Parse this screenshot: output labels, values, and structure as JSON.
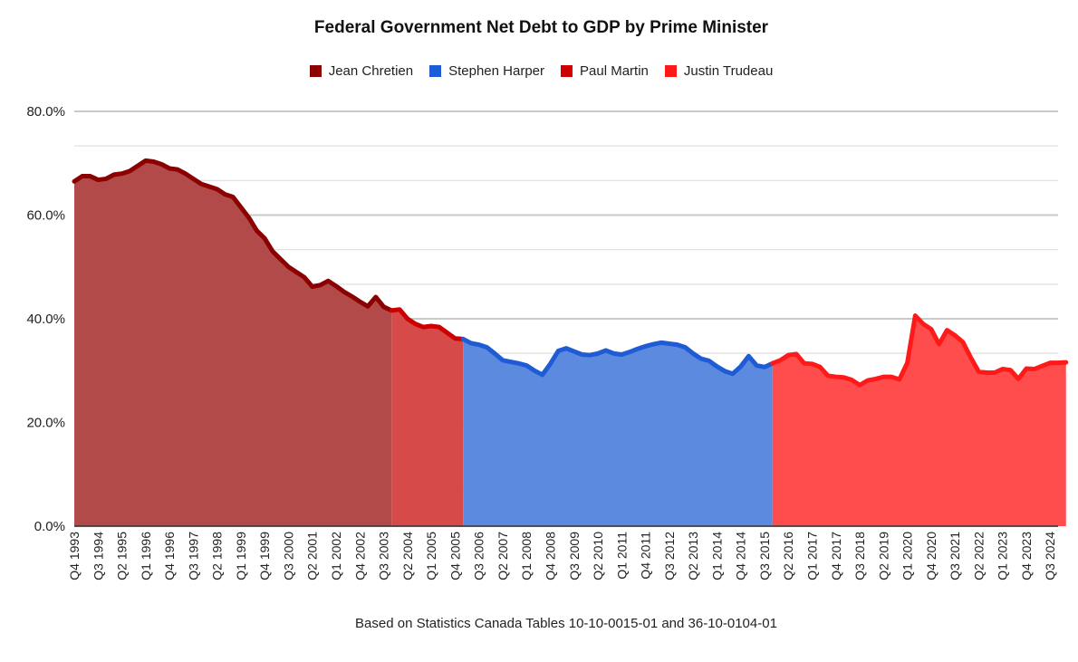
{
  "chart_data": {
    "type": "area",
    "title": "Federal Government Net Debt to GDP by Prime Minister",
    "caption": "Based on Statistics Canada Tables 10-10-0015-01 and 36-10-0104-01",
    "ylim": [
      0,
      80
    ],
    "yticks": [
      "0.0%",
      "20.0%",
      "40.0%",
      "60.0%",
      "80.0%"
    ],
    "ytick_values": [
      0,
      20,
      40,
      60,
      80
    ],
    "grid": true,
    "legend_position": "top",
    "x_start": "Q4 1993",
    "x_end": "Q4 2024",
    "x_tick_labels": [
      "Q4 1993",
      "Q3 1994",
      "Q2 1995",
      "Q1 1996",
      "Q4 1996",
      "Q3 1997",
      "Q2 1998",
      "Q1 1999",
      "Q4 1999",
      "Q3 2000",
      "Q2 2001",
      "Q1 2002",
      "Q4 2002",
      "Q3 2003",
      "Q2 2004",
      "Q1 2005",
      "Q4 2005",
      "Q3 2006",
      "Q2 2007",
      "Q1 2008",
      "Q4 2008",
      "Q3 2009",
      "Q2 2010",
      "Q1 2011",
      "Q4 2011",
      "Q3 2012",
      "Q2 2013",
      "Q1 2014",
      "Q4 2014",
      "Q3 2015",
      "Q2 2016",
      "Q1 2017",
      "Q4 2017",
      "Q3 2018",
      "Q2 2019",
      "Q1 2020",
      "Q4 2020",
      "Q3 2021",
      "Q2 2022",
      "Q1 2023",
      "Q4 2023",
      "Q3 2024"
    ],
    "series": [
      {
        "name": "Jean Chretien",
        "line_color": "#8b0000",
        "fill_color": "#b34a4a",
        "start_index": 0,
        "values": [
          66.5,
          67.5,
          67.5,
          66.8,
          67,
          67.8,
          68,
          68.5,
          69.5,
          70.5,
          70.3,
          69.8,
          69,
          68.8,
          68,
          67,
          66,
          65.5,
          65,
          64,
          63.5,
          61.5,
          59.5,
          57,
          55.5,
          53,
          51.5,
          50,
          49,
          48,
          46.2,
          46.5,
          47.3,
          46.3,
          45.2,
          44.3,
          43.3,
          42.4,
          44.2,
          42.3,
          41.6
        ]
      },
      {
        "name": "Paul Martin",
        "line_color": "#cc0000",
        "fill_color": "#d64a4a",
        "start_index": 40,
        "values": [
          41.6,
          41.8,
          40,
          39,
          38.4,
          38.6,
          38.4,
          37.3,
          36.2,
          36.1
        ]
      },
      {
        "name": "Stephen Harper",
        "line_color": "#1e5bd4",
        "fill_color": "#5b8ade",
        "start_index": 49,
        "values": [
          36.1,
          35.3,
          35,
          34.5,
          33.3,
          32,
          31.7,
          31.4,
          31,
          30,
          29.2,
          31.3,
          33.8,
          34.3,
          33.7,
          33.1,
          33,
          33.3,
          33.9,
          33.3,
          33.1,
          33.6,
          34.2,
          34.7,
          35.1,
          35.4,
          35.2,
          35,
          34.5,
          33.3,
          32.3,
          31.9,
          30.8,
          29.9,
          29.4,
          30.8,
          32.8,
          31,
          30.7,
          31.4
        ]
      },
      {
        "name": "Justin Trudeau",
        "line_color": "#ff1a1a",
        "fill_color": "#ff4d4d",
        "start_index": 88,
        "values": [
          31.4,
          32,
          33,
          33.2,
          31.4,
          31.3,
          30.7,
          29,
          28.8,
          28.7,
          28.2,
          27.2,
          28.1,
          28.4,
          28.8,
          28.8,
          28.3,
          31.5,
          40.6,
          39,
          38,
          35.1,
          37.8,
          36.8,
          35.5,
          32.5,
          29.8,
          29.6,
          29.6,
          30.3,
          30.1,
          28.4,
          30.4,
          30.3,
          30.9,
          31.5,
          31.5,
          31.6
        ]
      }
    ]
  }
}
